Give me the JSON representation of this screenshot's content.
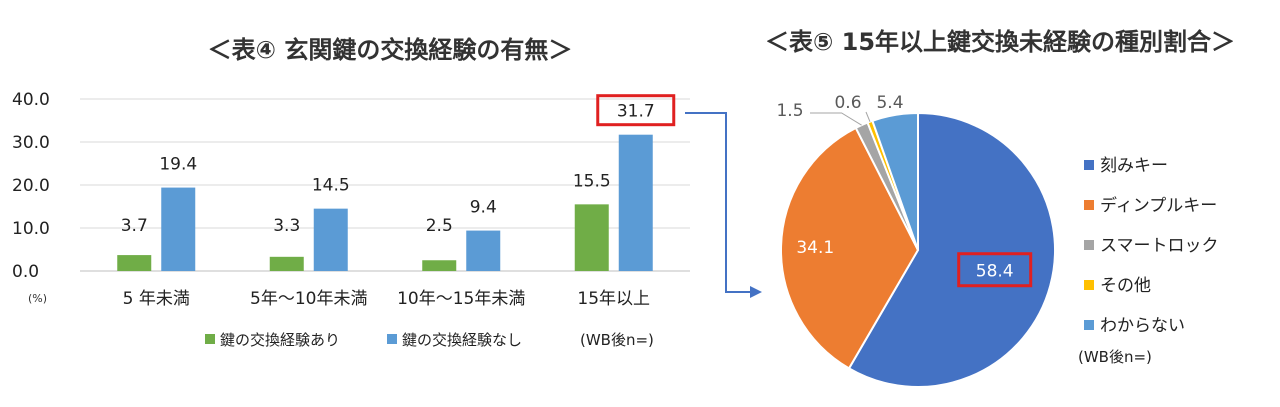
{
  "colors": {
    "green": "#70ad47",
    "blue": "#5b9bd5",
    "pie_blue": "#4472c4",
    "orange": "#ed7d31",
    "gray": "#a5a5a5",
    "yellow": "#ffc000",
    "light_blue": "#5b9bd5",
    "highlight_red": "#e02020",
    "arrow": "#4472c4",
    "grid": "#d9d9d9"
  },
  "chart_data": [
    {
      "type": "bar",
      "title": "＜表④ 玄関鍵の交換経験の有無＞",
      "unit_label": "(%)",
      "categories": [
        "5 年未満",
        "5年～10年未満",
        "10年～15年未満",
        "15年以上"
      ],
      "series": [
        {
          "name": "鍵の交換経験あり",
          "color": "#70ad47",
          "values": [
            3.7,
            3.3,
            2.5,
            15.5
          ]
        },
        {
          "name": "鍵の交換経験なし",
          "color": "#5b9bd5",
          "values": [
            19.4,
            14.5,
            9.4,
            31.7
          ]
        }
      ],
      "yticks": [
        "0.0",
        "10.0",
        "20.0",
        "30.0",
        "40.0"
      ],
      "ylim": [
        0,
        40
      ],
      "grid": true,
      "legend_position": "bottom",
      "highlighted_value": "31.7",
      "note": "(WB後n=)"
    },
    {
      "type": "pie",
      "title": "＜表⑤ 15年以上鍵交換未経験の種別割合＞",
      "slices": [
        {
          "name": "刻みキー",
          "value": 58.4,
          "label": "58.4",
          "color": "#4472c4"
        },
        {
          "name": "ディンプルキー",
          "value": 34.1,
          "label": "34.1",
          "color": "#ed7d31"
        },
        {
          "name": "スマートロック",
          "value": 1.5,
          "label": "1.5",
          "color": "#a5a5a5"
        },
        {
          "name": "その他",
          "value": 0.6,
          "label": "0.6",
          "color": "#ffc000"
        },
        {
          "name": "わからない",
          "value": 5.4,
          "label": "5.4",
          "color": "#5b9bd5"
        }
      ],
      "legend_position": "right",
      "highlighted_value": "58.4",
      "note": "(WB後n=)"
    }
  ]
}
